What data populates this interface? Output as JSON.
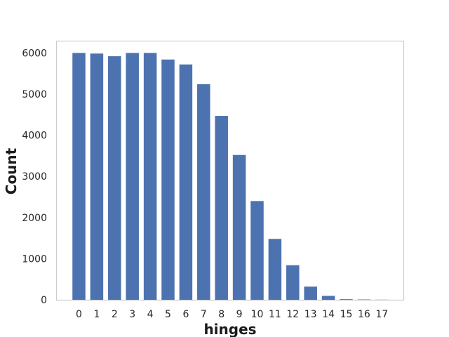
{
  "chart_data": {
    "type": "bar",
    "xlabel": "hinges",
    "ylabel": "Count",
    "categories": [
      "0",
      "1",
      "2",
      "3",
      "4",
      "5",
      "6",
      "7",
      "8",
      "9",
      "10",
      "11",
      "12",
      "13",
      "14",
      "15",
      "16",
      "17"
    ],
    "values": [
      6000,
      5985,
      5920,
      6000,
      6000,
      5840,
      5720,
      5240,
      4470,
      3520,
      2400,
      1480,
      840,
      320,
      95,
      15,
      8,
      3
    ],
    "ylim": [
      0,
      6500
    ],
    "yticks": [
      0,
      1000,
      2000,
      3000,
      4000,
      5000,
      6000
    ],
    "grid": false,
    "bar_color": "#4c72b0",
    "frame_color": "#cccccc"
  }
}
